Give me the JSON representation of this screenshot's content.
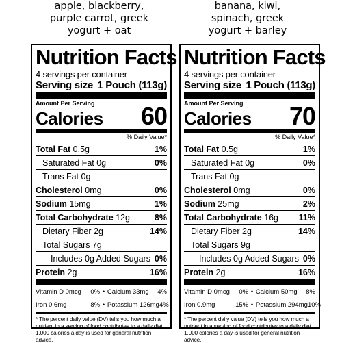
{
  "labels": [
    {
      "heading_lines": [
        "apple, blackberry,",
        "purple carrot, greek",
        "yogurt + oat"
      ],
      "title": "Nutrition Facts",
      "servings": "4 servings per container",
      "serving_size_label": "Serving size",
      "serving_size_value": "1 Pouch (113g)",
      "amount_per_serving": "Amount Per Serving",
      "calories_label": "Calories",
      "calories_value": "60",
      "dv_header": "% Daily Value*",
      "nutrients": [
        {
          "name": "Total Fat",
          "amount": "0.5g",
          "dv": "1%",
          "bold": true,
          "indent": 0
        },
        {
          "name": "Saturated Fat",
          "amount": "0g",
          "dv": "0%",
          "bold": false,
          "indent": 1
        },
        {
          "name": "Trans Fat",
          "amount": "0g",
          "dv": "",
          "bold": false,
          "indent": 1
        },
        {
          "name": "Cholesterol",
          "amount": "0mg",
          "dv": "0%",
          "bold": true,
          "indent": 0
        },
        {
          "name": "Sodium",
          "amount": "15mg",
          "dv": "1%",
          "bold": true,
          "indent": 0
        },
        {
          "name": "Total Carbohydrate",
          "amount": "12g",
          "dv": "8%",
          "bold": true,
          "indent": 0
        },
        {
          "name": "Dietary Fiber",
          "amount": "2g",
          "dv": "14%",
          "bold": false,
          "indent": 1
        },
        {
          "name": "Total Sugars",
          "amount": "7g",
          "dv": "",
          "bold": false,
          "indent": 1
        },
        {
          "name": "Includes 0g Added Sugars",
          "amount": "",
          "dv": "0%",
          "bold": false,
          "indent": 2
        },
        {
          "name": "Protein",
          "amount": "2g",
          "dv": "16%",
          "bold": true,
          "indent": 0
        }
      ],
      "vitamins": [
        [
          "Vitamin D 0mcg",
          "0%",
          "Calcium 33mg",
          "4%"
        ],
        [
          "Iron 0.6mg",
          "8%",
          "Potassium 126mg",
          "4%"
        ]
      ],
      "bullet": "•",
      "footnote": "* The percent daily value (DV) tells you how much a nutrient in a serving of food contributes to a daily diet. 1,000 calories a day is used for general nutrition advice."
    },
    {
      "heading_lines": [
        "banana, kiwi,",
        "spinach, greek",
        "yogurt + barley"
      ],
      "title": "Nutrition Facts",
      "servings": "4 servings per container",
      "serving_size_label": "Serving size",
      "serving_size_value": "1 Pouch (113g)",
      "amount_per_serving": "Amount Per Serving",
      "calories_label": "Calories",
      "calories_value": "70",
      "dv_header": "% Daily Value*",
      "nutrients": [
        {
          "name": "Total Fat",
          "amount": "0.5g",
          "dv": "1%",
          "bold": true,
          "indent": 0
        },
        {
          "name": "Saturated Fat",
          "amount": "0g",
          "dv": "0%",
          "bold": false,
          "indent": 1
        },
        {
          "name": "Trans Fat",
          "amount": "0g",
          "dv": "",
          "bold": false,
          "indent": 1
        },
        {
          "name": "Cholesterol",
          "amount": "0mg",
          "dv": "0%",
          "bold": true,
          "indent": 0
        },
        {
          "name": "Sodium",
          "amount": "25mg",
          "dv": "2%",
          "bold": true,
          "indent": 0
        },
        {
          "name": "Total Carbohydrate",
          "amount": "16g",
          "dv": "11%",
          "bold": true,
          "indent": 0
        },
        {
          "name": "Dietary Fiber",
          "amount": "2g",
          "dv": "14%",
          "bold": false,
          "indent": 1
        },
        {
          "name": "Total Sugars",
          "amount": "9g",
          "dv": "",
          "bold": false,
          "indent": 1
        },
        {
          "name": "Includes 0g Added Sugars",
          "amount": "",
          "dv": "0%",
          "bold": false,
          "indent": 2
        },
        {
          "name": "Protein",
          "amount": "2g",
          "dv": "16%",
          "bold": true,
          "indent": 0
        }
      ],
      "vitamins": [
        [
          "Vitamin D 0mcg",
          "0%",
          "Calcium 50mg",
          "8%"
        ],
        [
          "Iron 0.9mg",
          "15%",
          "Potassium 294mg",
          "10%"
        ]
      ],
      "bullet": "•",
      "footnote": "* The percent daily value (DV) tells you how much a nutrient in a serving of food contributes to a daily diet. 1,000 calories a day is used for general nutrition advice."
    }
  ]
}
